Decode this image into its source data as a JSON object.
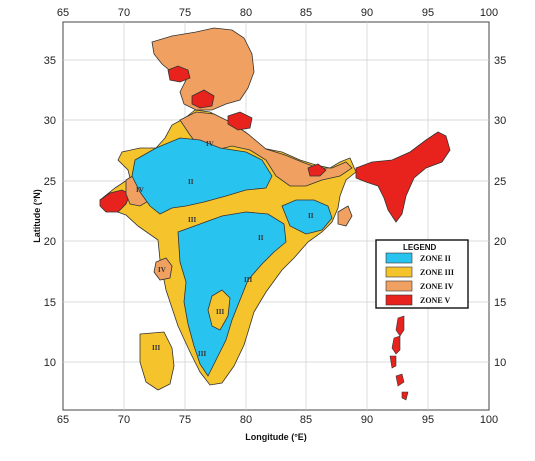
{
  "axes": {
    "x_label": "Longitude (°E)",
    "y_label": "Latitude (°N)",
    "x_ticks": [
      "65",
      "70",
      "75",
      "80",
      "85",
      "90",
      "95",
      "100"
    ],
    "y_ticks": [
      "35",
      "30",
      "25",
      "20",
      "15",
      "10"
    ],
    "x_range": [
      65,
      100
    ],
    "y_range": [
      6,
      37
    ],
    "grid": true
  },
  "legend": {
    "title": "LEGEND",
    "position": "right",
    "items": [
      {
        "label": "ZONE II",
        "color": "#29c3f0"
      },
      {
        "label": "ZONE III",
        "color": "#f5c32c"
      },
      {
        "label": "ZONE IV",
        "color": "#f0a060"
      },
      {
        "label": "ZONE V",
        "color": "#e8221c"
      }
    ]
  },
  "zone_labels": {
    "ii_north": "II",
    "ii_central": "II",
    "ii_east": "II",
    "iii_gujarat": "III",
    "iii_central": "III",
    "iii_deccan": "III",
    "iii_south": "III",
    "iii_lakshadweep": "III",
    "iv_north": "IV",
    "iv_kutch": "IV",
    "iv_west": "IV"
  },
  "colors": {
    "zone_ii": "#29c3f0",
    "zone_iii": "#f5c32c",
    "zone_iv": "#f0a060",
    "zone_v": "#e8221c",
    "grid": "#cfcfcf",
    "border": "#333333"
  }
}
